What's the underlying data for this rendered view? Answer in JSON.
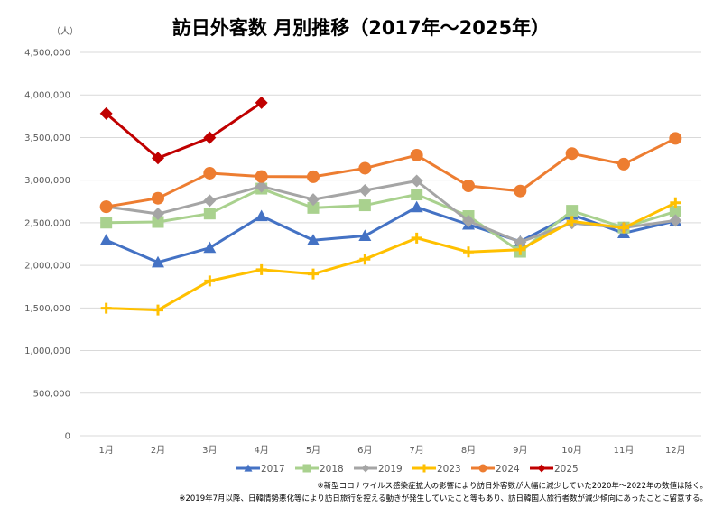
{
  "chart_data": {
    "type": "line",
    "title": "訪日外客数 月別推移（2017年～2025年）",
    "ylabel": "（人）",
    "xlabel": "",
    "ylim": [
      0,
      4500000
    ],
    "yticks": [
      0,
      500000,
      1000000,
      1500000,
      2000000,
      2500000,
      3000000,
      3500000,
      4000000,
      4500000
    ],
    "ytick_labels": [
      "0",
      "500,000",
      "1,000,000",
      "1,500,000",
      "2,000,000",
      "2,500,000",
      "3,000,000",
      "3,500,000",
      "4,000,000",
      "4,500,000"
    ],
    "grid": true,
    "legend_position": "bottom",
    "categories": [
      "1月",
      "2月",
      "3月",
      "4月",
      "5月",
      "6月",
      "7月",
      "8月",
      "9月",
      "10月",
      "11月",
      "12月"
    ],
    "series": [
      {
        "name": "2017",
        "color": "#4472C4",
        "marker": "triangle",
        "values": [
          2295700,
          2035800,
          2205700,
          2578000,
          2294700,
          2346400,
          2682500,
          2478900,
          2279300,
          2595300,
          2378100,
          2521000
        ]
      },
      {
        "name": "2018",
        "color": "#A9D18E",
        "marker": "square",
        "values": [
          2501409,
          2509297,
          2607956,
          2900718,
          2675052,
          2704631,
          2832040,
          2578021,
          2159600,
          2640600,
          2443800,
          2632000
        ]
      },
      {
        "name": "2019",
        "color": "#A5A5A5",
        "marker": "diamond",
        "values": [
          2689339,
          2604322,
          2760136,
          2926685,
          2773091,
          2880041,
          2991189,
          2520134,
          2272883,
          2496568,
          2441274,
          2526387
        ]
      },
      {
        "name": "2023",
        "color": "#FFC000",
        "marker": "plus",
        "values": [
          1497472,
          1475455,
          1817500,
          1949100,
          1899200,
          2073300,
          2320600,
          2156900,
          2184300,
          2516500,
          2440100,
          2734000
        ]
      },
      {
        "name": "2024",
        "color": "#ED7D31",
        "marker": "circle",
        "values": [
          2688100,
          2788000,
          3081600,
          3042900,
          3040000,
          3140000,
          3292500,
          2933000,
          2872200,
          3312000,
          3188000,
          3489800
        ]
      },
      {
        "name": "2025",
        "color": "#C00000",
        "marker": "diamond",
        "values": [
          3781629,
          3258100,
          3497600,
          3908900
        ]
      }
    ],
    "annotations": [
      "※新型コロナウイルス感染症拡大の影響により訪日外客数が大幅に減少していた2020年～2022年の数値は除く。",
      "※2019年7月以降、日韓情勢悪化等により訪日旅行を控える動きが発生していたこと等もあり、訪日韓国人旅行者数が減少傾向にあったことに留意する。"
    ]
  }
}
